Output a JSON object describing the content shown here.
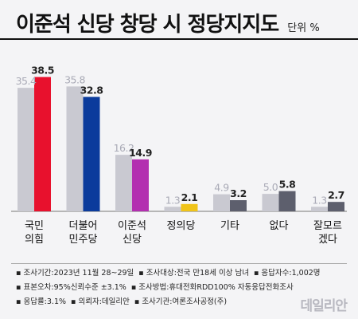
{
  "title": "이준석 신당 창당 시 정당지지도",
  "unit": "단위 %",
  "chart_data": {
    "type": "bar",
    "title": "이준석 신당 창당 시 정당지지도",
    "unit": "단위 %",
    "categories": [
      "국민\n의힘",
      "더불어\n민주당",
      "이준석\n신당",
      "정의당",
      "기타",
      "없다",
      "잘모르\n겠다"
    ],
    "series": [
      {
        "values": [
          35.4,
          35.8,
          16.2,
          1.3,
          4.9,
          5.0,
          1.3
        ]
      },
      {
        "values": [
          38.5,
          32.8,
          14.9,
          2.1,
          3.2,
          5.8,
          2.7
        ]
      }
    ],
    "colors": {
      "prev": "#c9c9d1",
      "current": [
        "#e8112d",
        "#0b3b9c",
        "#b32fb0",
        "#f0c419",
        "#5d5f6d",
        "#5d5f6d",
        "#5d5f6d"
      ],
      "prev_label": "#a9aab6",
      "current_label": "#222222"
    },
    "ylim": [
      0,
      40
    ]
  },
  "notes": [
    [
      "▪ 조사기간:2023년 11월 28~29일",
      "▪ 조사대상:전국 만18세 이상 남녀",
      "▪ 응답자수:1,002명"
    ],
    [
      "▪ 표본오차:95%신뢰수준 ±3.1%",
      "▪ 조사방법:휴대전화RDD100% 자동응답전화조사"
    ],
    [
      "▪ 응답률:3.1%",
      "▪ 의뢰자:데일리안",
      "▪ 조사기관:여론조사공정(주)"
    ]
  ],
  "watermark": "데일리안"
}
